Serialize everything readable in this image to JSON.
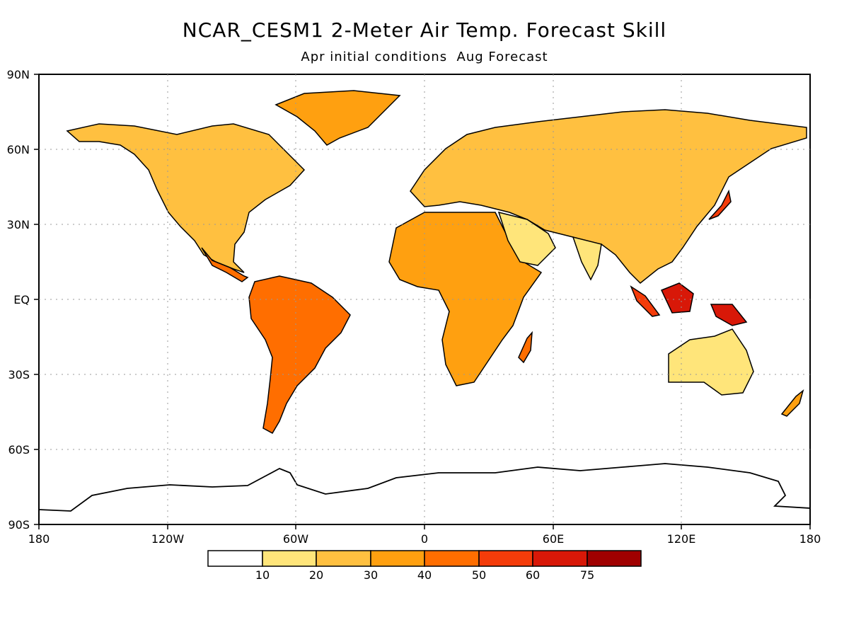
{
  "title": "NCAR_CESM1 2-Meter Air Temp. Forecast Skill",
  "subtitle": "Apr initial conditions  Aug Forecast",
  "map": {
    "lat_labels": [
      "90N",
      "60N",
      "30N",
      "EQ",
      "30S",
      "60S",
      "90S"
    ],
    "lon_labels": [
      "180",
      "120W",
      "60W",
      "0",
      "60E",
      "120E",
      "180"
    ],
    "ocean_color": "#ffffff",
    "coastline_color": "#000000",
    "grid": "dotted"
  },
  "legend": {
    "labels": [
      "10",
      "20",
      "30",
      "40",
      "50",
      "60",
      "75"
    ],
    "colors": [
      "#ffffff",
      "#ffe57a",
      "#ffc040",
      "#ffa010",
      "#ff6e00",
      "#f43c0a",
      "#d81808",
      "#a00000"
    ]
  }
}
